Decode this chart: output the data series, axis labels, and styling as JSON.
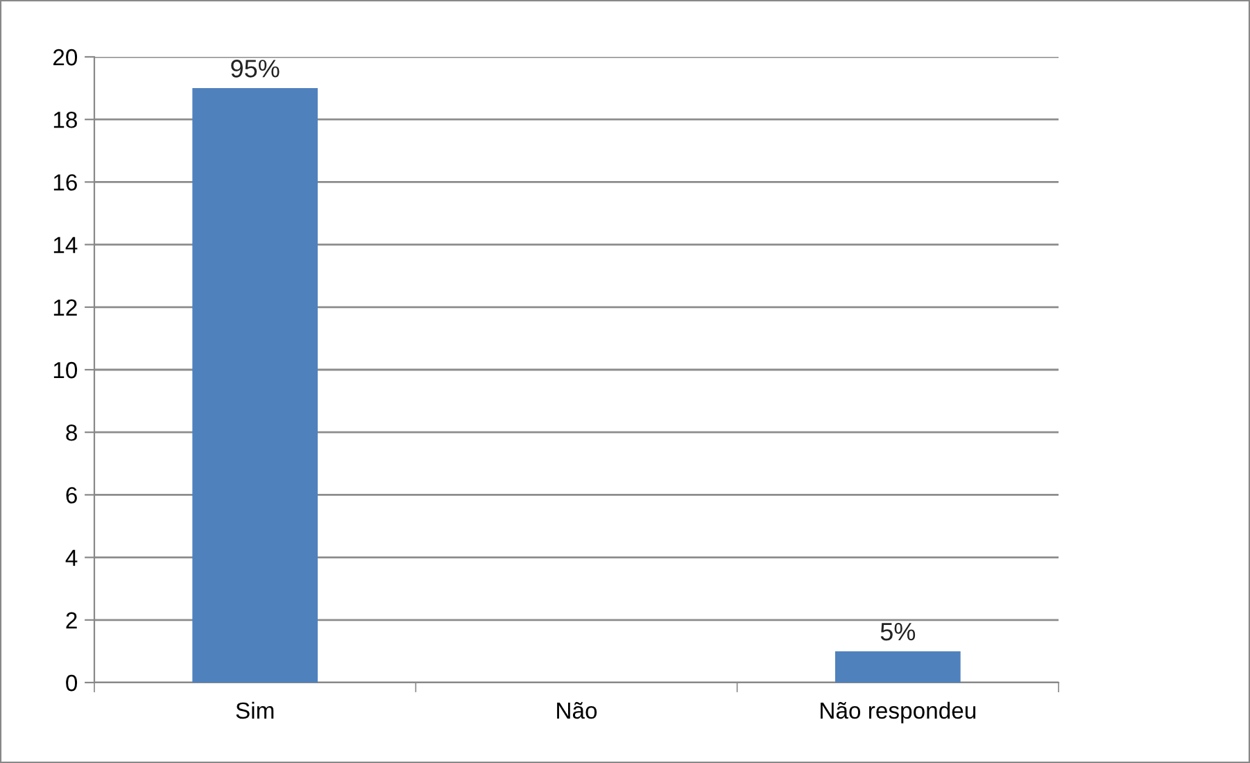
{
  "chart_data": {
    "type": "bar",
    "categories": [
      "Sim",
      "Não",
      "Não respondeu"
    ],
    "values": [
      19,
      0,
      1
    ],
    "annotations": [
      {
        "text": "95%",
        "x": "Sim",
        "y": 19
      },
      {
        "text": "5%",
        "x": "Não respondeu",
        "y": 1
      }
    ],
    "color": "#4f81bd",
    "ylim": [
      0,
      20
    ],
    "yticks": [
      0,
      2,
      4,
      6,
      8,
      10,
      12,
      14,
      16,
      18,
      20
    ],
    "grid": "y",
    "legend": false
  }
}
